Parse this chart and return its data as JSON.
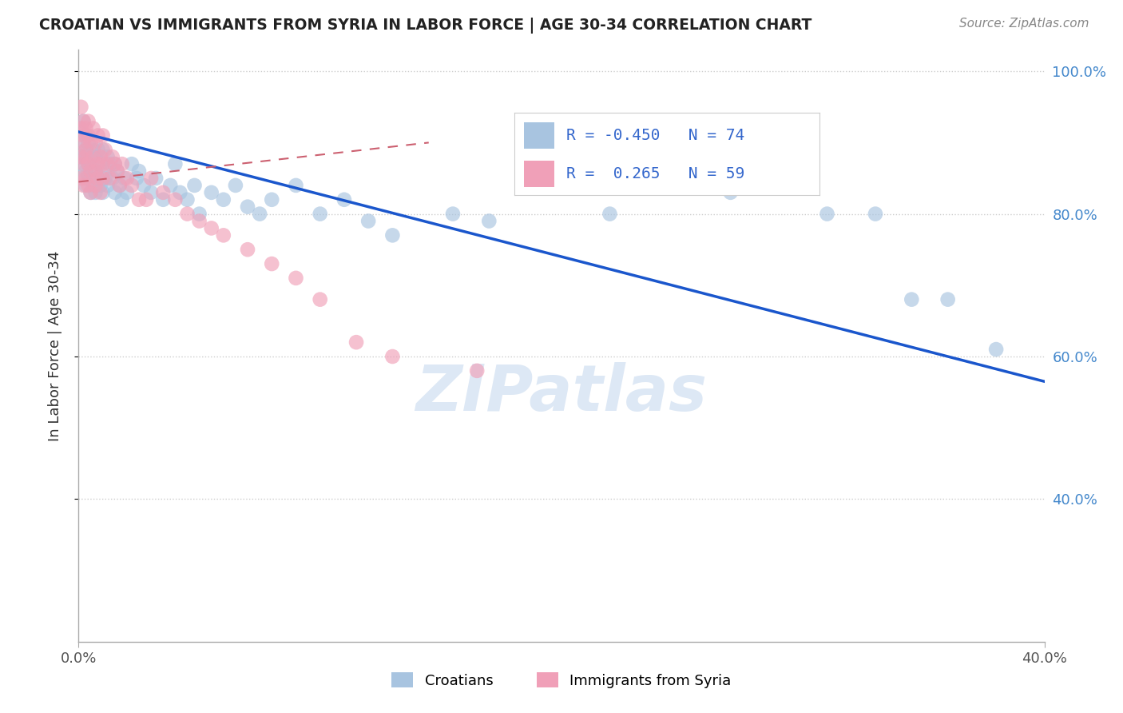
{
  "title": "CROATIAN VS IMMIGRANTS FROM SYRIA IN LABOR FORCE | AGE 30-34 CORRELATION CHART",
  "source": "Source: ZipAtlas.com",
  "ylabel": "In Labor Force | Age 30-34",
  "legend_croatians": "Croatians",
  "legend_syria": "Immigrants from Syria",
  "R_croatians": -0.45,
  "N_croatians": 74,
  "R_syria": 0.265,
  "N_syria": 59,
  "xlim": [
    0.0,
    0.4
  ],
  "ylim": [
    0.2,
    1.03
  ],
  "xticks": [
    0.0,
    0.4
  ],
  "yticks": [
    0.4,
    0.6,
    0.8,
    1.0
  ],
  "color_croatians": "#a8c4e0",
  "color_syria": "#f0a0b8",
  "line_color_croatians": "#1a56cc",
  "line_color_syria": "#cc6070",
  "background_color": "#ffffff",
  "watermark": "ZIPatlas",
  "cr_line_x0": 0.0,
  "cr_line_y0": 0.915,
  "cr_line_x1": 0.4,
  "cr_line_y1": 0.565,
  "sy_line_x0": 0.0,
  "sy_line_y0": 0.845,
  "sy_line_x1": 0.145,
  "sy_line_y1": 0.9,
  "croatians_x": [
    0.001,
    0.001,
    0.001,
    0.002,
    0.002,
    0.002,
    0.002,
    0.003,
    0.003,
    0.003,
    0.003,
    0.004,
    0.004,
    0.004,
    0.005,
    0.005,
    0.005,
    0.006,
    0.006,
    0.007,
    0.007,
    0.007,
    0.008,
    0.008,
    0.009,
    0.009,
    0.01,
    0.01,
    0.01,
    0.011,
    0.012,
    0.012,
    0.013,
    0.014,
    0.015,
    0.015,
    0.016,
    0.017,
    0.018,
    0.019,
    0.02,
    0.022,
    0.024,
    0.025,
    0.027,
    0.03,
    0.032,
    0.035,
    0.038,
    0.04,
    0.042,
    0.045,
    0.048,
    0.05,
    0.055,
    0.06,
    0.065,
    0.07,
    0.075,
    0.08,
    0.09,
    0.1,
    0.11,
    0.12,
    0.13,
    0.155,
    0.17,
    0.22,
    0.27,
    0.31,
    0.33,
    0.345,
    0.36,
    0.38
  ],
  "croatians_y": [
    0.88,
    0.92,
    0.87,
    0.9,
    0.93,
    0.85,
    0.88,
    0.91,
    0.86,
    0.89,
    0.84,
    0.87,
    0.9,
    0.85,
    0.88,
    0.83,
    0.86,
    0.89,
    0.84,
    0.88,
    0.83,
    0.86,
    0.85,
    0.89,
    0.84,
    0.87,
    0.86,
    0.89,
    0.83,
    0.85,
    0.88,
    0.84,
    0.87,
    0.85,
    0.83,
    0.87,
    0.86,
    0.84,
    0.82,
    0.85,
    0.83,
    0.87,
    0.85,
    0.86,
    0.84,
    0.83,
    0.85,
    0.82,
    0.84,
    0.87,
    0.83,
    0.82,
    0.84,
    0.8,
    0.83,
    0.82,
    0.84,
    0.81,
    0.8,
    0.82,
    0.84,
    0.8,
    0.82,
    0.79,
    0.77,
    0.8,
    0.79,
    0.8,
    0.83,
    0.8,
    0.8,
    0.68,
    0.68,
    0.61
  ],
  "syria_x": [
    0.001,
    0.001,
    0.001,
    0.001,
    0.002,
    0.002,
    0.002,
    0.002,
    0.002,
    0.003,
    0.003,
    0.003,
    0.003,
    0.004,
    0.004,
    0.004,
    0.004,
    0.005,
    0.005,
    0.005,
    0.006,
    0.006,
    0.007,
    0.007,
    0.007,
    0.008,
    0.008,
    0.008,
    0.009,
    0.009,
    0.01,
    0.01,
    0.01,
    0.011,
    0.012,
    0.013,
    0.014,
    0.015,
    0.016,
    0.017,
    0.018,
    0.02,
    0.022,
    0.025,
    0.028,
    0.03,
    0.035,
    0.04,
    0.045,
    0.05,
    0.055,
    0.06,
    0.07,
    0.08,
    0.09,
    0.1,
    0.115,
    0.13,
    0.165
  ],
  "syria_y": [
    0.92,
    0.88,
    0.95,
    0.85,
    0.91,
    0.87,
    0.93,
    0.84,
    0.9,
    0.88,
    0.92,
    0.85,
    0.89,
    0.87,
    0.91,
    0.84,
    0.93,
    0.86,
    0.9,
    0.83,
    0.88,
    0.92,
    0.86,
    0.9,
    0.84,
    0.87,
    0.91,
    0.85,
    0.88,
    0.83,
    0.87,
    0.91,
    0.85,
    0.89,
    0.87,
    0.85,
    0.88,
    0.87,
    0.86,
    0.84,
    0.87,
    0.85,
    0.84,
    0.82,
    0.82,
    0.85,
    0.83,
    0.82,
    0.8,
    0.79,
    0.78,
    0.77,
    0.75,
    0.73,
    0.71,
    0.68,
    0.62,
    0.6,
    0.58
  ]
}
